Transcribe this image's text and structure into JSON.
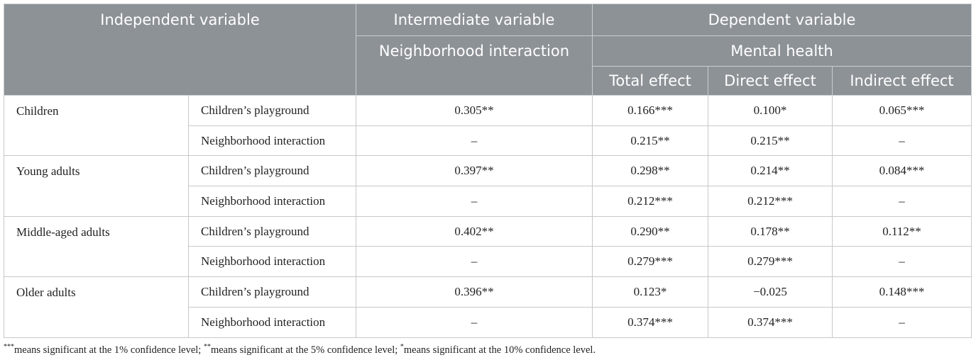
{
  "header": {
    "independent": "Independent variable",
    "intermediate": "Intermediate variable",
    "intermediate_sub": "Neighborhood interaction",
    "dependent": "Dependent variable",
    "dependent_sub": "Mental health",
    "effects": [
      "Total effect",
      "Direct effect",
      "Indirect effect"
    ]
  },
  "table": {
    "groups": [
      {
        "label": "Children",
        "rows": [
          [
            "Children’s playground",
            "0.305**",
            "0.166***",
            "0.100*",
            "0.065***"
          ],
          [
            "Neighborhood interaction",
            "–",
            "0.215**",
            "0.215**",
            "–"
          ]
        ]
      },
      {
        "label": "Young adults",
        "rows": [
          [
            "Children’s playground",
            "0.397**",
            "0.298**",
            "0.214**",
            "0.084***"
          ],
          [
            "Neighborhood interaction",
            "–",
            "0.212***",
            "0.212***",
            "–"
          ]
        ]
      },
      {
        "label": "Middle-aged adults",
        "rows": [
          [
            "Children’s playground",
            "0.402**",
            "0.290**",
            "0.178**",
            "0.112**"
          ],
          [
            "Neighborhood interaction",
            "–",
            "0.279***",
            "0.279***",
            "–"
          ]
        ]
      },
      {
        "label": "Older adults",
        "rows": [
          [
            "Children’s playground",
            "0.396**",
            "0.123*",
            "−0.025",
            "0.148***"
          ],
          [
            "Neighborhood interaction",
            "–",
            "0.374***",
            "0.374***",
            "–"
          ]
        ]
      }
    ]
  },
  "footnote": [
    {
      "sup": "***",
      "text": "means significant at the 1% confidence level; "
    },
    {
      "sup": "**",
      "text": "means significant at the 5% confidence level; "
    },
    {
      "sup": "*",
      "text": "means significant at the 10% confidence level."
    }
  ]
}
